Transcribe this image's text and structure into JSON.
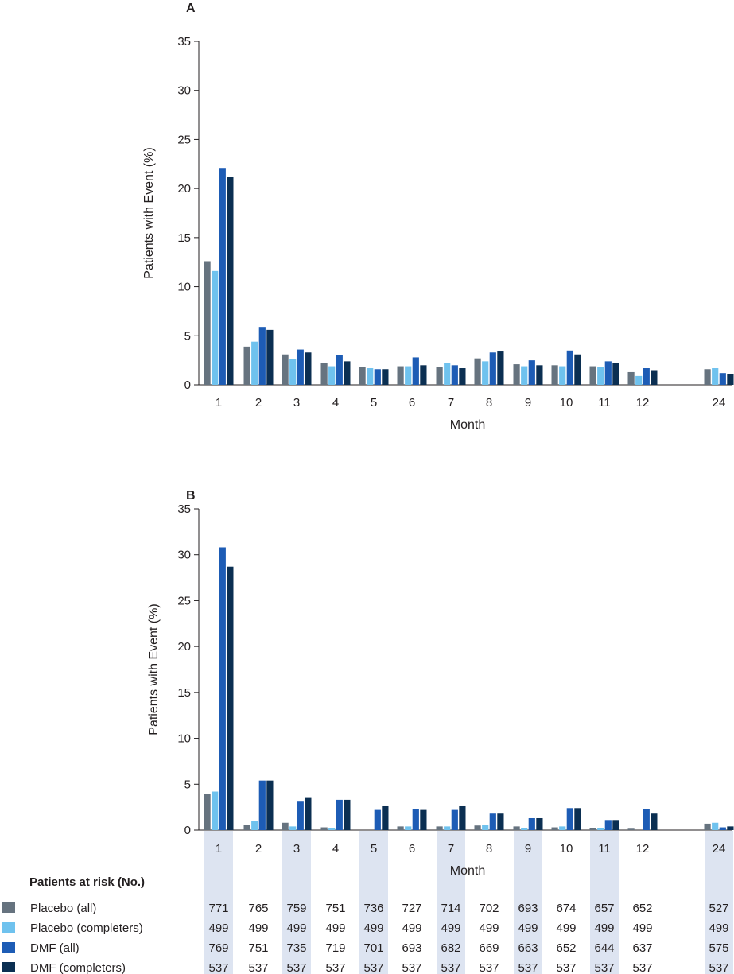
{
  "chart_data": [
    {
      "panel": "A",
      "type": "bar",
      "ylabel": "Patients with Event (%)",
      "xlabel": "Month",
      "ylim": [
        0,
        35
      ],
      "yticks": [
        0,
        5,
        10,
        15,
        20,
        25,
        30,
        35
      ],
      "categories": [
        "1",
        "2",
        "3",
        "4",
        "5",
        "6",
        "7",
        "8",
        "9",
        "10",
        "11",
        "12",
        "24"
      ],
      "series": [
        {
          "name": "Placebo (all)",
          "color": "#66737f",
          "values": [
            12.6,
            3.9,
            3.1,
            2.2,
            1.8,
            1.9,
            1.8,
            2.7,
            2.1,
            2.0,
            1.9,
            1.3,
            1.6
          ]
        },
        {
          "name": "Placebo (completers)",
          "color": "#6fc2ee",
          "values": [
            11.6,
            4.4,
            2.6,
            1.9,
            1.7,
            1.9,
            2.2,
            2.4,
            1.9,
            1.9,
            1.8,
            0.9,
            1.7
          ]
        },
        {
          "name": "DMF (all)",
          "color": "#1d5cb5",
          "values": [
            22.1,
            5.9,
            3.6,
            3.0,
            1.6,
            2.8,
            2.0,
            3.3,
            2.5,
            3.5,
            2.4,
            1.7,
            1.2
          ]
        },
        {
          "name": "DMF (completers)",
          "color": "#0b2f52",
          "values": [
            21.2,
            5.6,
            3.3,
            2.4,
            1.6,
            2.0,
            1.7,
            3.4,
            2.0,
            3.1,
            2.2,
            1.5,
            1.1
          ]
        }
      ]
    },
    {
      "panel": "B",
      "type": "bar",
      "ylabel": "Patients with Event (%)",
      "xlabel": "Month",
      "ylim": [
        0,
        35
      ],
      "yticks": [
        0,
        5,
        10,
        15,
        20,
        25,
        30,
        35
      ],
      "categories": [
        "1",
        "2",
        "3",
        "4",
        "5",
        "6",
        "7",
        "8",
        "9",
        "10",
        "11",
        "12",
        "24"
      ],
      "series": [
        {
          "name": "Placebo (all)",
          "color": "#66737f",
          "values": [
            3.9,
            0.6,
            0.8,
            0.3,
            0.0,
            0.4,
            0.4,
            0.5,
            0.4,
            0.3,
            0.2,
            0.15,
            0.7
          ]
        },
        {
          "name": "Placebo (completers)",
          "color": "#6fc2ee",
          "values": [
            4.2,
            1.0,
            0.4,
            0.2,
            0.0,
            0.4,
            0.4,
            0.6,
            0.2,
            0.4,
            0.2,
            0.0,
            0.8
          ]
        },
        {
          "name": "DMF (all)",
          "color": "#1d5cb5",
          "values": [
            30.8,
            5.4,
            3.1,
            3.3,
            2.2,
            2.3,
            2.2,
            1.8,
            1.3,
            2.4,
            1.1,
            2.3,
            0.3
          ]
        },
        {
          "name": "DMF (completers)",
          "color": "#0b2f52",
          "values": [
            28.7,
            5.4,
            3.5,
            3.3,
            2.6,
            2.2,
            2.6,
            1.8,
            1.3,
            2.4,
            1.1,
            1.8,
            0.4
          ]
        }
      ]
    }
  ],
  "risk_table": {
    "title": "Patients at risk (No.)",
    "highlight_columns": [
      "1",
      "3",
      "5",
      "7",
      "9",
      "11",
      "24"
    ],
    "highlight_color": "#dde4f1",
    "rows": [
      {
        "label": "Placebo (all)",
        "color": "#66737f",
        "values": [
          "771",
          "765",
          "759",
          "751",
          "736",
          "727",
          "714",
          "702",
          "693",
          "674",
          "657",
          "652",
          "527"
        ]
      },
      {
        "label": "Placebo (completers)",
        "color": "#6fc2ee",
        "values": [
          "499",
          "499",
          "499",
          "499",
          "499",
          "499",
          "499",
          "499",
          "499",
          "499",
          "499",
          "499",
          "499"
        ]
      },
      {
        "label": "DMF (all)",
        "color": "#1d5cb5",
        "values": [
          "769",
          "751",
          "735",
          "719",
          "701",
          "693",
          "682",
          "669",
          "663",
          "652",
          "644",
          "637",
          "575"
        ]
      },
      {
        "label": "DMF (completers)",
        "color": "#0b2f52",
        "values": [
          "537",
          "537",
          "537",
          "537",
          "537",
          "537",
          "537",
          "537",
          "537",
          "537",
          "537",
          "537",
          "537"
        ]
      }
    ]
  }
}
